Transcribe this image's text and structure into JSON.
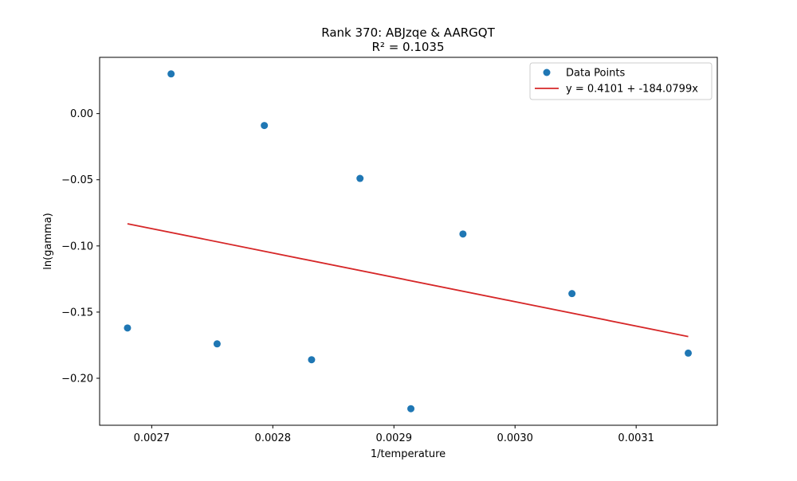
{
  "chart_data": {
    "type": "scatter",
    "title": "Rank 370: ABJzqe & AARGQT",
    "subtitle": "R² = 0.1035",
    "xlabel": "1/temperature",
    "ylabel": "ln(gamma)",
    "xlim": [
      0.002657,
      0.003167
    ],
    "ylim": [
      -0.2355,
      0.0425
    ],
    "x_ticks": [
      0.0027,
      0.0028,
      0.0029,
      0.003,
      0.0031
    ],
    "x_tick_labels": [
      "0.0027",
      "0.0028",
      "0.0029",
      "0.0030",
      "0.0031"
    ],
    "y_ticks": [
      0.0,
      -0.05,
      -0.1,
      -0.15,
      -0.2
    ],
    "y_tick_labels": [
      "0.00",
      "−0.05",
      "−0.10",
      "−0.15",
      "−0.20"
    ],
    "grid": false,
    "legend_position": "top-right",
    "series": [
      {
        "name": "Data Points",
        "kind": "scatter",
        "color": "#1f77b4",
        "points": [
          {
            "x": 0.00268,
            "y": -0.162
          },
          {
            "x": 0.002716,
            "y": 0.03
          },
          {
            "x": 0.002754,
            "y": -0.174
          },
          {
            "x": 0.002793,
            "y": -0.009
          },
          {
            "x": 0.002832,
            "y": -0.186
          },
          {
            "x": 0.002872,
            "y": -0.049
          },
          {
            "x": 0.002914,
            "y": -0.223
          },
          {
            "x": 0.002957,
            "y": -0.091
          },
          {
            "x": 0.003047,
            "y": -0.136
          },
          {
            "x": 0.003143,
            "y": -0.181
          }
        ]
      },
      {
        "name": "y = 0.4101 + -184.0799x",
        "kind": "line",
        "color": "#d62728",
        "intercept": 0.4101,
        "slope": -184.0799,
        "x_range": [
          0.00268,
          0.003143
        ]
      }
    ]
  }
}
